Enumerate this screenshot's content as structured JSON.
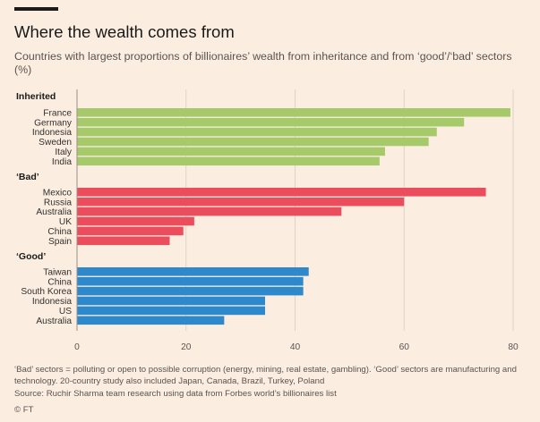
{
  "title": "Where the wealth comes from",
  "subtitle": "Countries with largest proportions of billionaires’ wealth from inheritance and from ‘good’/‘bad’ sectors (%)",
  "footnote": "‘Bad’ sectors = polluting or open to possible corruption (energy, mining, real estate, gambling). ‘Good’ sectors are manufacturing and technology. 20-country study also included Japan, Canada, Brazil, Turkey, Poland",
  "source": "Source: Ruchir Sharma team research using data from Forbes world’s billionaires list",
  "credit": "© FT",
  "colors": {
    "inherited": "#a6c96a",
    "bad": "#ec4d5d",
    "good": "#2d89cc",
    "grid": "#ddd3c9",
    "axis": "#999088",
    "text": "#33302e"
  },
  "chart_data": {
    "type": "bar",
    "orientation": "horizontal",
    "xlim": [
      0,
      80
    ],
    "xticks": [
      0,
      20,
      40,
      60,
      80
    ],
    "groups": [
      {
        "name": "Inherited",
        "color_key": "inherited",
        "categories": [
          "France",
          "Germany",
          "Indonesia",
          "Sweden",
          "Italy",
          "India"
        ],
        "values": [
          79.5,
          71,
          66,
          64.5,
          56.5,
          55.5
        ]
      },
      {
        "name": "‘Bad’",
        "color_key": "bad",
        "categories": [
          "Mexico",
          "Russia",
          "Australia",
          "UK",
          "China",
          "Spain"
        ],
        "values": [
          75,
          60,
          48.5,
          21.5,
          19.5,
          17
        ]
      },
      {
        "name": "‘Good’",
        "color_key": "good",
        "categories": [
          "Taiwan",
          "China",
          "South Korea",
          "Indonesia",
          "US",
          "Australia"
        ],
        "values": [
          42.5,
          41.5,
          41.5,
          34.5,
          34.5,
          27
        ]
      }
    ]
  }
}
